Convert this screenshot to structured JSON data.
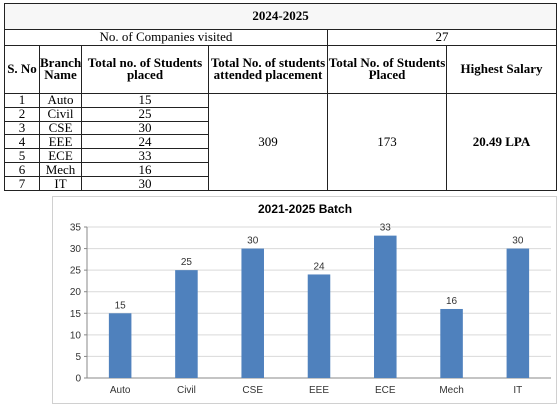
{
  "table": {
    "title": "2024-2025",
    "companies_label": "No. of Companies visited",
    "companies_value": "27",
    "headers": {
      "sno": "S. No",
      "branch": "Branch Name",
      "placed": "Total no. of Students placed",
      "attended": "Total No. of students attended placement",
      "total_placed": "Total No. of Students Placed",
      "highest": "Highest Salary"
    },
    "rows": [
      {
        "sno": "1",
        "branch": "Auto",
        "placed": "15"
      },
      {
        "sno": "2",
        "branch": "Civil",
        "placed": "25"
      },
      {
        "sno": "3",
        "branch": "CSE",
        "placed": "30"
      },
      {
        "sno": "4",
        "branch": "EEE",
        "placed": "24"
      },
      {
        "sno": "5",
        "branch": "ECE",
        "placed": "33"
      },
      {
        "sno": "6",
        "branch": "Mech",
        "placed": "16"
      },
      {
        "sno": "7",
        "branch": "IT",
        "placed": "30"
      }
    ],
    "attended_total": "309",
    "placed_total": "173",
    "highest_salary": "20.49 LPA"
  },
  "chart_data": {
    "type": "bar",
    "title": "2021-2025 Batch",
    "categories": [
      "Auto",
      "Civil",
      "CSE",
      "EEE",
      "ECE",
      "Mech",
      "IT"
    ],
    "values": [
      15,
      25,
      30,
      24,
      33,
      16,
      30
    ],
    "ylim": [
      0,
      35
    ],
    "yticks": [
      0,
      5,
      10,
      15,
      20,
      25,
      30,
      35
    ],
    "grid": true,
    "legend": false,
    "bar_color": "#4f81bd",
    "grid_color": "#d9d9d9"
  }
}
